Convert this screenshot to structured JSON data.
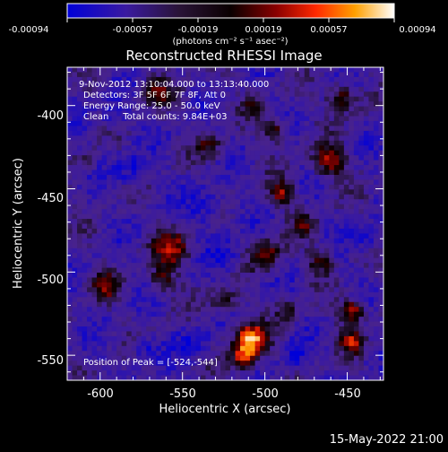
{
  "title": "Reconstructed RHESSI Image",
  "colorbar": {
    "ticks": [
      "-0.00094",
      "-0.00057",
      "-0.00019",
      "0.00019",
      "0.00057",
      "0.00094"
    ],
    "unit_label": "(photons cm⁻² s⁻¹ asec⁻²)",
    "range": [
      -0.00094,
      0.00094
    ]
  },
  "info": {
    "time_range": "9-Nov-2012 13:10:04.000 to 13:13:40.000",
    "detectors": "Detectors: 3F 5F 6F 7F 8F, Att 0",
    "energy": "Energy Range: 25.0 - 50.0 keV",
    "clean": "Clean     Total counts: 9.84E+03",
    "peak": "Position of Peak = [-524,-544]"
  },
  "axes": {
    "xlabel": "Heliocentric X (arcsec)",
    "ylabel": "Heliocentric Y (arcsec)",
    "xticks": [
      "-600",
      "-550",
      "-500",
      "-450"
    ],
    "yticks": [
      "-400",
      "-450",
      "-500",
      "-550"
    ],
    "xlim": [
      -620,
      -428
    ],
    "ylim": [
      -565,
      -377
    ]
  },
  "footer": {
    "timestamp": "15-May-2022 21:00"
  }
}
